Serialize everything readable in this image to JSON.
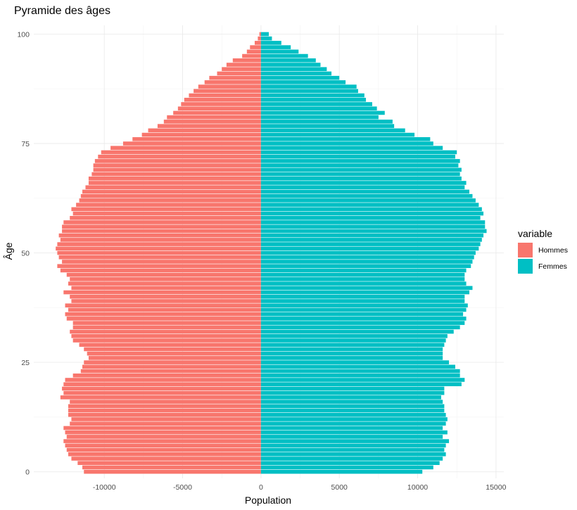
{
  "chart_data": {
    "type": "bar",
    "orientation": "horizontal-pyramid",
    "title": "Pyramide des âges",
    "xlabel": "Population",
    "ylabel": "Âge",
    "xlim": [
      -14500,
      15500
    ],
    "ylim": [
      -1.5,
      102
    ],
    "x_ticks": [
      -10000,
      -5000,
      0,
      5000,
      10000,
      15000
    ],
    "x_tick_labels": [
      "-10000",
      "-5000",
      "0",
      "5000",
      "10000",
      "15000"
    ],
    "y_ticks": [
      0,
      25,
      50,
      75,
      100
    ],
    "y_tick_labels": [
      "0",
      "25",
      "50",
      "75",
      "100"
    ],
    "grid": true,
    "legend": {
      "title": "variable",
      "position": "right",
      "entries": [
        "Hommes",
        "Femmes"
      ]
    },
    "series": [
      {
        "name": "Hommes",
        "color": "#F8766D",
        "ages": [
          0,
          1,
          2,
          3,
          4,
          5,
          6,
          7,
          8,
          9,
          10,
          11,
          12,
          13,
          14,
          15,
          16,
          17,
          18,
          19,
          20,
          21,
          22,
          23,
          24,
          25,
          26,
          27,
          28,
          29,
          30,
          31,
          32,
          33,
          34,
          35,
          36,
          37,
          38,
          39,
          40,
          41,
          42,
          43,
          44,
          45,
          46,
          47,
          48,
          49,
          50,
          51,
          52,
          53,
          54,
          55,
          56,
          57,
          58,
          59,
          60,
          61,
          62,
          63,
          64,
          65,
          66,
          67,
          68,
          69,
          70,
          71,
          72,
          73,
          74,
          75,
          76,
          77,
          78,
          79,
          80,
          81,
          82,
          83,
          84,
          85,
          86,
          87,
          88,
          89,
          90,
          91,
          92,
          93,
          94,
          95,
          96,
          97,
          98,
          99,
          100
        ],
        "values": [
          -11300,
          -11400,
          -11700,
          -12100,
          -12300,
          -12400,
          -12500,
          -12600,
          -12400,
          -12500,
          -12600,
          -12200,
          -12100,
          -12300,
          -12300,
          -12300,
          -12200,
          -12800,
          -12600,
          -12700,
          -12600,
          -12500,
          -12000,
          -11500,
          -11400,
          -11300,
          -11000,
          -11100,
          -11300,
          -11600,
          -12000,
          -12100,
          -12200,
          -12000,
          -12000,
          -12400,
          -12500,
          -12300,
          -12500,
          -12100,
          -12200,
          -12600,
          -12100,
          -12300,
          -12200,
          -12400,
          -12800,
          -13000,
          -12700,
          -12900,
          -13000,
          -13100,
          -13000,
          -12800,
          -12900,
          -12700,
          -12700,
          -12600,
          -12200,
          -12000,
          -12100,
          -11800,
          -11600,
          -11500,
          -11400,
          -11200,
          -11000,
          -11000,
          -10800,
          -10700,
          -10700,
          -10600,
          -10400,
          -10200,
          -9600,
          -8800,
          -8200,
          -7600,
          -7200,
          -6600,
          -6200,
          -6000,
          -5600,
          -5300,
          -5100,
          -4900,
          -4600,
          -4300,
          -4000,
          -3600,
          -3300,
          -2800,
          -2500,
          -2200,
          -1800,
          -1200,
          -900,
          -700,
          -400,
          -200,
          -100
        ]
      },
      {
        "name": "Femmes",
        "color": "#00BFC4",
        "ages": [
          0,
          1,
          2,
          3,
          4,
          5,
          6,
          7,
          8,
          9,
          10,
          11,
          12,
          13,
          14,
          15,
          16,
          17,
          18,
          19,
          20,
          21,
          22,
          23,
          24,
          25,
          26,
          27,
          28,
          29,
          30,
          31,
          32,
          33,
          34,
          35,
          36,
          37,
          38,
          39,
          40,
          41,
          42,
          43,
          44,
          45,
          46,
          47,
          48,
          49,
          50,
          51,
          52,
          53,
          54,
          55,
          56,
          57,
          58,
          59,
          60,
          61,
          62,
          63,
          64,
          65,
          66,
          67,
          68,
          69,
          70,
          71,
          72,
          73,
          74,
          75,
          76,
          77,
          78,
          79,
          80,
          81,
          82,
          83,
          84,
          85,
          86,
          87,
          88,
          89,
          90,
          91,
          92,
          93,
          94,
          95,
          96,
          97,
          98,
          99,
          100
        ],
        "values": [
          10300,
          11000,
          11400,
          11600,
          11800,
          11700,
          11800,
          12000,
          11600,
          11900,
          11600,
          11800,
          11900,
          11800,
          11700,
          11700,
          11600,
          11500,
          11700,
          11700,
          12800,
          13000,
          12700,
          12700,
          12400,
          12000,
          11600,
          11600,
          11600,
          11700,
          11800,
          11900,
          12300,
          12700,
          13000,
          13100,
          12900,
          13100,
          13200,
          13000,
          13000,
          13300,
          13500,
          13100,
          13000,
          13000,
          13100,
          13400,
          13500,
          13600,
          13700,
          13900,
          14000,
          14100,
          14200,
          14400,
          14300,
          14300,
          14000,
          14200,
          14100,
          13900,
          13700,
          13500,
          13300,
          13000,
          13100,
          12800,
          12700,
          12800,
          12600,
          12700,
          12400,
          12500,
          11600,
          11000,
          10800,
          9800,
          9200,
          8500,
          8400,
          7500,
          7900,
          7400,
          7100,
          6700,
          6600,
          6200,
          6100,
          5400,
          5000,
          4500,
          4200,
          3800,
          3500,
          3000,
          2400,
          1900,
          1300,
          700,
          500
        ]
      }
    ]
  }
}
